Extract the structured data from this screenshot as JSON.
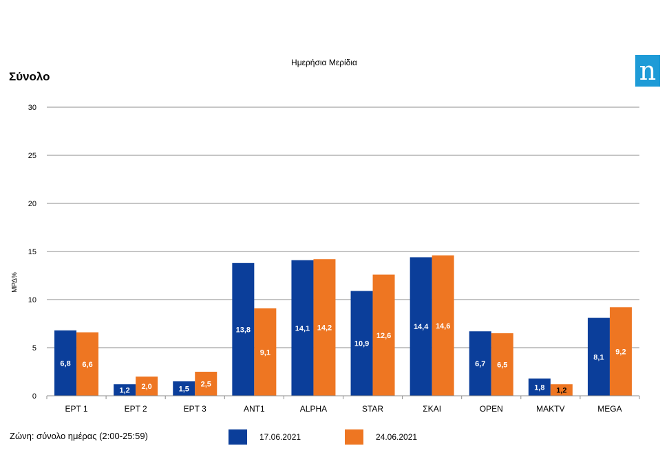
{
  "header": {
    "title": "Ημερήσια Μερίδια",
    "section": "Σύνολο",
    "logo_text": "n",
    "logo_color": "#1e9bd7"
  },
  "footer": {
    "zone": "Ζώνη: σύνολο ημέρας (2:00-25:59)"
  },
  "legend": [
    {
      "label": "17.06.2021",
      "color": "#0b3e9a"
    },
    {
      "label": "24.06.2021",
      "color": "#ee7622"
    }
  ],
  "chart_data": {
    "type": "bar",
    "title": "Ημερήσια Μερίδια",
    "ylabel": "ΜΡΔ%",
    "xlabel": "",
    "ylim": [
      0,
      30
    ],
    "yticks": [
      0,
      5,
      10,
      15,
      20,
      25,
      30
    ],
    "grid": true,
    "categories": [
      "ΕΡΤ 1",
      "ΕΡΤ 2",
      "ΕΡΤ 3",
      "ΑΝΤ1",
      "ALPHA",
      "STAR",
      "ΣΚΑΙ",
      "OPEN",
      "MAKTV",
      "MEGA"
    ],
    "series": [
      {
        "name": "17.06.2021",
        "color": "#0b3e9a",
        "values": [
          6.8,
          1.2,
          1.5,
          13.8,
          14.1,
          10.9,
          14.4,
          6.7,
          1.8,
          8.1
        ],
        "labels": [
          "6,8",
          "1,2",
          "1,5",
          "13,8",
          "14,1",
          "10,9",
          "14,4",
          "6,7",
          "1,8",
          "8,1"
        ]
      },
      {
        "name": "24.06.2021",
        "color": "#ee7622",
        "values": [
          6.6,
          2.0,
          2.5,
          9.1,
          14.2,
          12.6,
          14.6,
          6.5,
          1.2,
          9.2
        ],
        "labels": [
          "6,6",
          "2,0",
          "2,5",
          "9,1",
          "14,2",
          "12,6",
          "14,6",
          "6,5",
          "1,2",
          "9,2"
        ]
      }
    ]
  }
}
